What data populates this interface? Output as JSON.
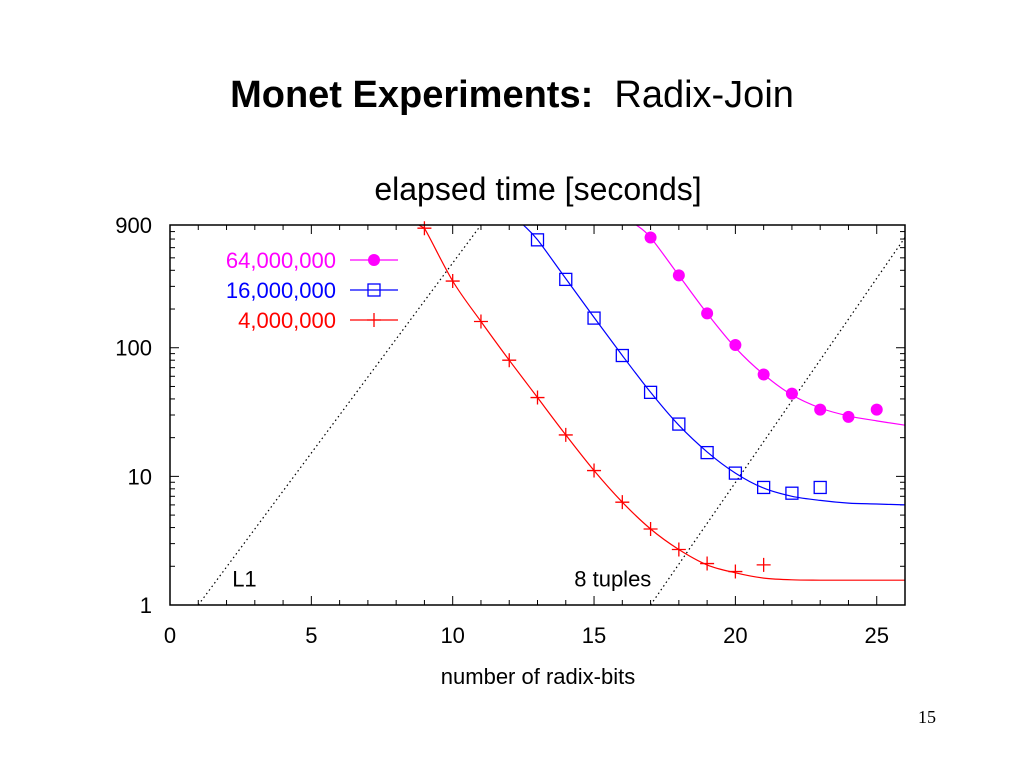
{
  "slide": {
    "title_bold": "Monet Experiments:",
    "title_rest": "Radix-Join",
    "page_number": "15"
  },
  "chart_data": {
    "type": "line",
    "title": "elapsed time [seconds]",
    "xlabel": "number of radix-bits",
    "ylabel": "",
    "yscale": "log",
    "xlim": [
      0,
      26
    ],
    "ylim": [
      1,
      900
    ],
    "x_ticks": [
      0,
      5,
      10,
      15,
      20,
      25
    ],
    "x_tick_labels": [
      "0",
      "5",
      "10",
      "15",
      "20",
      "25"
    ],
    "y_ticks": [
      1,
      10,
      100,
      900
    ],
    "y_tick_labels": [
      "1",
      "10",
      "100",
      "900"
    ],
    "legend_position": "top-left",
    "series": [
      {
        "name": "64,000,000",
        "color": "#ff00ff",
        "marker": "filled-circle",
        "points": [
          [
            17,
            720
          ],
          [
            18,
            365
          ],
          [
            19,
            185
          ],
          [
            20,
            105
          ],
          [
            21,
            62
          ],
          [
            22,
            44
          ],
          [
            23,
            33
          ],
          [
            24,
            29
          ],
          [
            25,
            33
          ]
        ],
        "fit": [
          [
            16.5,
            900
          ],
          [
            17,
            720
          ],
          [
            18,
            365
          ],
          [
            19,
            185
          ],
          [
            20,
            100
          ],
          [
            21,
            62
          ],
          [
            22,
            43
          ],
          [
            23,
            34
          ],
          [
            24,
            29.5
          ],
          [
            25,
            27
          ],
          [
            26,
            25
          ]
        ]
      },
      {
        "name": "16,000,000",
        "color": "#0000ff",
        "marker": "open-square",
        "points": [
          [
            13,
            690
          ],
          [
            14,
            340
          ],
          [
            15,
            170
          ],
          [
            16,
            87
          ],
          [
            17,
            45
          ],
          [
            18,
            25.5
          ],
          [
            19,
            15.3
          ],
          [
            20,
            10.6
          ],
          [
            21,
            8.2
          ],
          [
            22,
            7.4
          ],
          [
            23,
            8.2
          ]
        ],
        "fit": [
          [
            12.5,
            900
          ],
          [
            13,
            690
          ],
          [
            14,
            345
          ],
          [
            15,
            172
          ],
          [
            16,
            87
          ],
          [
            17,
            45
          ],
          [
            18,
            25
          ],
          [
            19,
            15.5
          ],
          [
            20,
            10.6
          ],
          [
            21,
            8.1
          ],
          [
            22,
            7.0
          ],
          [
            23,
            6.5
          ],
          [
            24,
            6.2
          ],
          [
            25,
            6.1
          ],
          [
            26,
            6.0
          ]
        ]
      },
      {
        "name": "4,000,000",
        "color": "#ff0000",
        "marker": "plus",
        "points": [
          [
            9,
            850
          ],
          [
            10,
            330
          ],
          [
            11,
            160
          ],
          [
            12,
            80
          ],
          [
            13,
            41
          ],
          [
            14,
            21
          ],
          [
            15,
            11.1
          ],
          [
            16,
            6.3
          ],
          [
            17,
            3.9
          ],
          [
            18,
            2.7
          ],
          [
            19,
            2.1
          ],
          [
            20,
            1.82
          ],
          [
            21,
            2.05
          ]
        ],
        "fit": [
          [
            8.8,
            900
          ],
          [
            9,
            850
          ],
          [
            10,
            330
          ],
          [
            11,
            160
          ],
          [
            12,
            80
          ],
          [
            13,
            41
          ],
          [
            14,
            21
          ],
          [
            15,
            11.1
          ],
          [
            16,
            6.3
          ],
          [
            17,
            3.9
          ],
          [
            18,
            2.7
          ],
          [
            19,
            2.05
          ],
          [
            20,
            1.78
          ],
          [
            21,
            1.62
          ],
          [
            22,
            1.57
          ],
          [
            23,
            1.56
          ],
          [
            24,
            1.56
          ],
          [
            25,
            1.56
          ],
          [
            26,
            1.56
          ]
        ]
      }
    ],
    "reference_lines": [
      {
        "name": "L1",
        "label": "L1",
        "color": "#000000",
        "style": "dotted",
        "from": [
          1,
          1
        ],
        "to": [
          11,
          900
        ],
        "label_at": [
          2.2,
          1.6
        ]
      },
      {
        "name": "8 tuples",
        "label": "8 tuples",
        "color": "#000000",
        "style": "dotted",
        "from": [
          17,
          1
        ],
        "to": [
          26,
          720
        ],
        "label_at": [
          14.3,
          1.6
        ]
      }
    ]
  }
}
